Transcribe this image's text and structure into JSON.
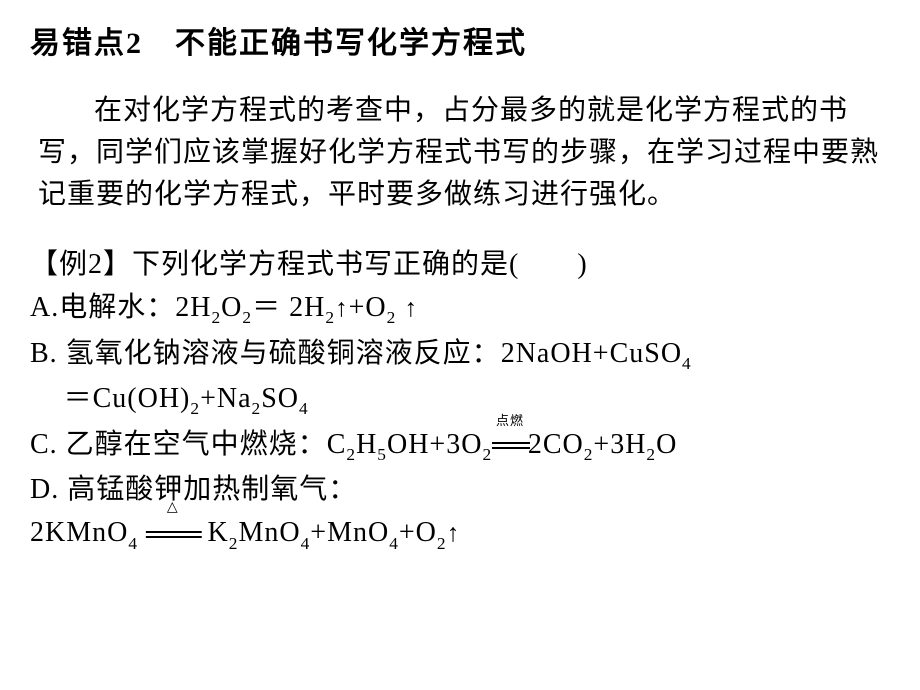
{
  "title": "易错点2　不能正确书写化学方程式",
  "paragraph": "在对化学方程式的考查中，占分最多的就是化学方程式的书写，同学们应该掌握好化学方程式书写的步骤，在学习过程中要熟记重要的化学方程式，平时要多做练习进行强化。",
  "example_label": "【例2】下列化学方程式书写正确的是(　　)",
  "options": {
    "A_prefix": "A.电解水：",
    "A_formula_parts": {
      "p1": "2H",
      "s1": "2",
      "p2": "O",
      "s2": "2",
      "eq": "＝",
      "p3": " 2H",
      "s3": "2",
      "arrow1": "↑",
      "plus": "+O",
      "s4": "2",
      "space": " ",
      "arrow2": "↑"
    },
    "B_prefix": "B. 氢氧化钠溶液与硫酸铜溶液反应：",
    "B_formula_line1": {
      "p1": "2NaOH+CuSO",
      "s1": "4"
    },
    "B_formula_line2": {
      "eq": "＝",
      "p1": "Cu(OH)",
      "s1": "2",
      "plus": "+Na",
      "s2": "2",
      "p2": "SO",
      "s3": "4"
    },
    "C_prefix": "C. 乙醇在空气中燃烧：",
    "C_formula": {
      "p1": "C",
      "s1": "2",
      "p2": "H",
      "s2": "5",
      "p3": "OH+3O",
      "s3": "2",
      "condition": "点燃",
      "p4": "2CO",
      "s4": "2",
      "plus": "+3H",
      "s5": "2",
      "p5": "O"
    },
    "D_prefix": "D. 高锰酸钾加热制氧气：",
    "D_formula": {
      "p1": "2KMnO",
      "s1": "4",
      "space1": " ",
      "triangle": "△",
      "space2": " ",
      "p2": "K",
      "s2": "2",
      "p3": "MnO",
      "s3": "4",
      "plus1": "+MnO",
      "s4": "4",
      "plus2": "+O",
      "s5": "2",
      "arrow": "↑"
    }
  },
  "style": {
    "background_color": "#ffffff",
    "text_color": "#000000",
    "title_fontsize": 30,
    "body_fontsize": 28,
    "condition_fontsize": 13
  }
}
